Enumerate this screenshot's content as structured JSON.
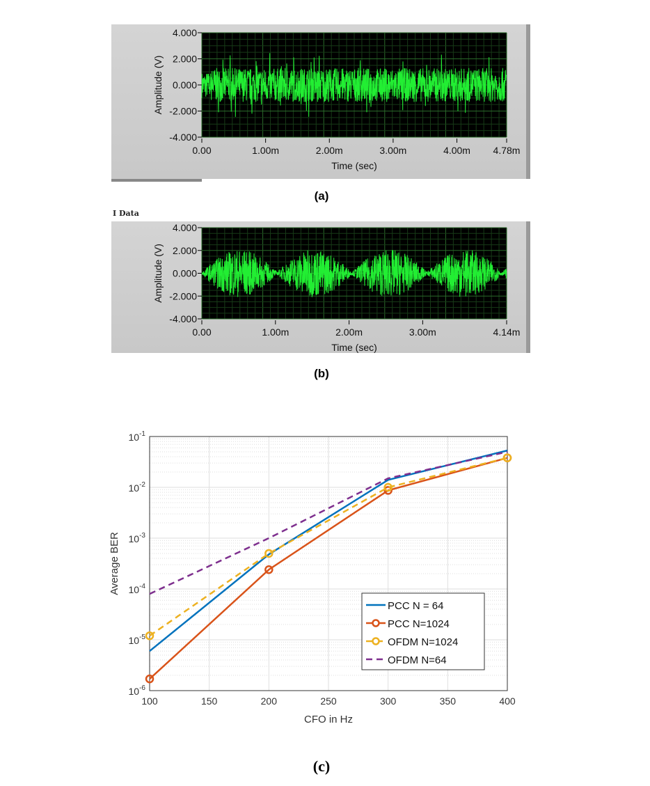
{
  "chart_data": [
    {
      "type": "line",
      "panel_label": "(a)",
      "xlabel": "Time (sec)",
      "ylabel": "Amplitude (V)",
      "xticks": [
        "0.00",
        "1.00m",
        "2.00m",
        "3.00m",
        "4.00m",
        "4.78m"
      ],
      "yticks": [
        "4.000",
        "2.000",
        "0.000",
        "-2.000",
        "-4.000"
      ],
      "xlim": [
        0,
        0.00478
      ],
      "ylim": [
        -4,
        4
      ],
      "grid": true,
      "background": "#000000",
      "trace_color": "#22ee33",
      "signal": "noise-like, amplitude about ±1.5 V with peaks to ±3 V"
    },
    {
      "type": "line",
      "panel_label": "(b)",
      "title": "I Data",
      "xlabel": "Time (sec)",
      "ylabel": "Amplitude (V)",
      "xticks": [
        "0.00",
        "1.00m",
        "2.00m",
        "3.00m",
        "4.14m"
      ],
      "yticks": [
        "4.000",
        "2.000",
        "0.000",
        "-2.000",
        "-4.000"
      ],
      "xlim": [
        0,
        0.00414
      ],
      "ylim": [
        -4,
        4
      ],
      "grid": true,
      "background": "#000000",
      "trace_color": "#22ee33",
      "signal": "four amplitude-modulated bursts, peak about ±2.5 V"
    },
    {
      "type": "line",
      "panel_label": "(c)",
      "xlabel": "CFO in Hz",
      "ylabel": "Average BER",
      "x": [
        100,
        200,
        300,
        400
      ],
      "xlim": [
        100,
        400
      ],
      "xticks": [
        "100",
        "150",
        "200",
        "250",
        "300",
        "350",
        "400"
      ],
      "ylim": [
        1e-06,
        0.1
      ],
      "yscale": "log",
      "yticks": [
        "10^-6",
        "10^-5",
        "10^-4",
        "10^-3",
        "10^-2",
        "10^-1"
      ],
      "grid": true,
      "legend_position": "bottom-right",
      "series": [
        {
          "name": "PCC N = 64",
          "values": [
            6e-06,
            0.00048,
            0.014,
            0.053
          ],
          "color": "#0072bd",
          "style": "solid",
          "marker": "none"
        },
        {
          "name": "PCC N=1024",
          "values": [
            1.7e-06,
            0.00024,
            0.0087,
            0.038
          ],
          "color": "#d95319",
          "style": "solid",
          "marker": "circle"
        },
        {
          "name": "OFDM N=1024",
          "values": [
            1.2e-05,
            0.0005,
            0.01,
            0.038
          ],
          "color": "#edb120",
          "style": "dashed",
          "marker": "circle"
        },
        {
          "name": " OFDM N=64",
          "values": [
            8e-05,
            0.001,
            0.015,
            0.05
          ],
          "color": "#7e2f8e",
          "style": "dashed",
          "marker": "none"
        }
      ]
    }
  ]
}
